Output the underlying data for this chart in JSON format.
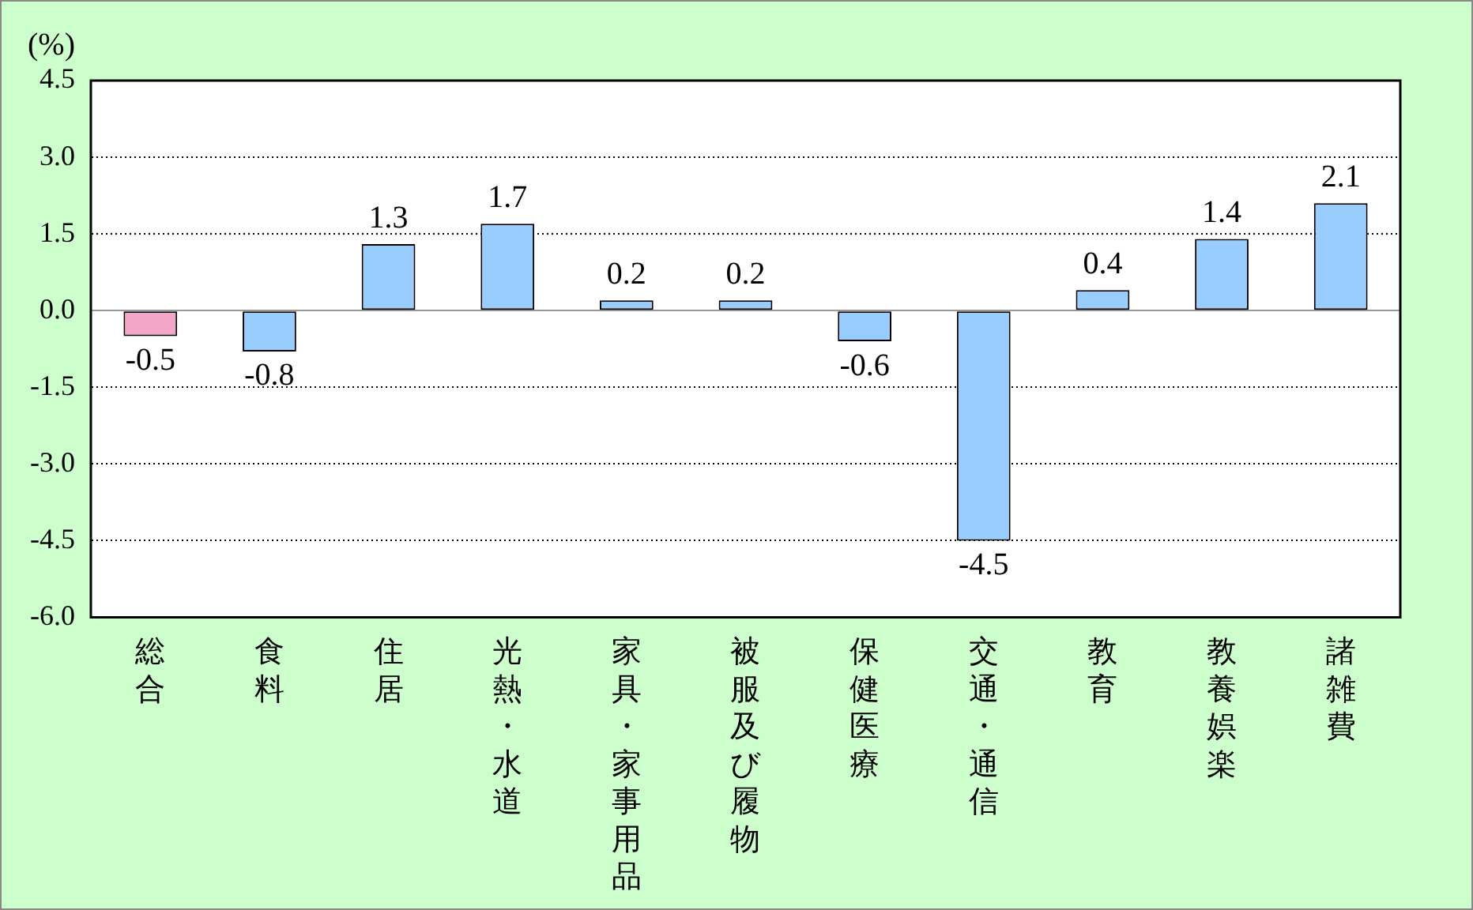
{
  "chart_data": {
    "type": "bar",
    "ylabel": "(%)",
    "categories": [
      "総合",
      "食料",
      "住居",
      "光熱・水道",
      "家具・家事用品",
      "被服及び履物",
      "保健医療",
      "交通・通信",
      "教育",
      "教養娯楽",
      "諸雑費"
    ],
    "values": [
      -0.5,
      -0.8,
      1.3,
      1.7,
      0.2,
      0.2,
      -0.6,
      -4.5,
      0.4,
      1.4,
      2.1
    ],
    "colors": [
      "#f4a6c8",
      "#99ccff",
      "#99ccff",
      "#99ccff",
      "#99ccff",
      "#99ccff",
      "#99ccff",
      "#99ccff",
      "#99ccff",
      "#99ccff",
      "#99ccff"
    ],
    "ylim": [
      -6,
      4.5
    ],
    "yticks": [
      {
        "value": -6,
        "label": "-6.0"
      },
      {
        "value": -4.5,
        "label": "-4.5"
      },
      {
        "value": -3,
        "label": "-3.0"
      },
      {
        "value": -1.5,
        "label": "-1.5"
      },
      {
        "value": 0,
        "label": "0.0"
      },
      {
        "value": 1.5,
        "label": "1.5"
      },
      {
        "value": 3,
        "label": "3.0"
      },
      {
        "value": 4.5,
        "label": "4.5"
      }
    ],
    "grid": "y",
    "data_labels": true,
    "legend": false
  }
}
